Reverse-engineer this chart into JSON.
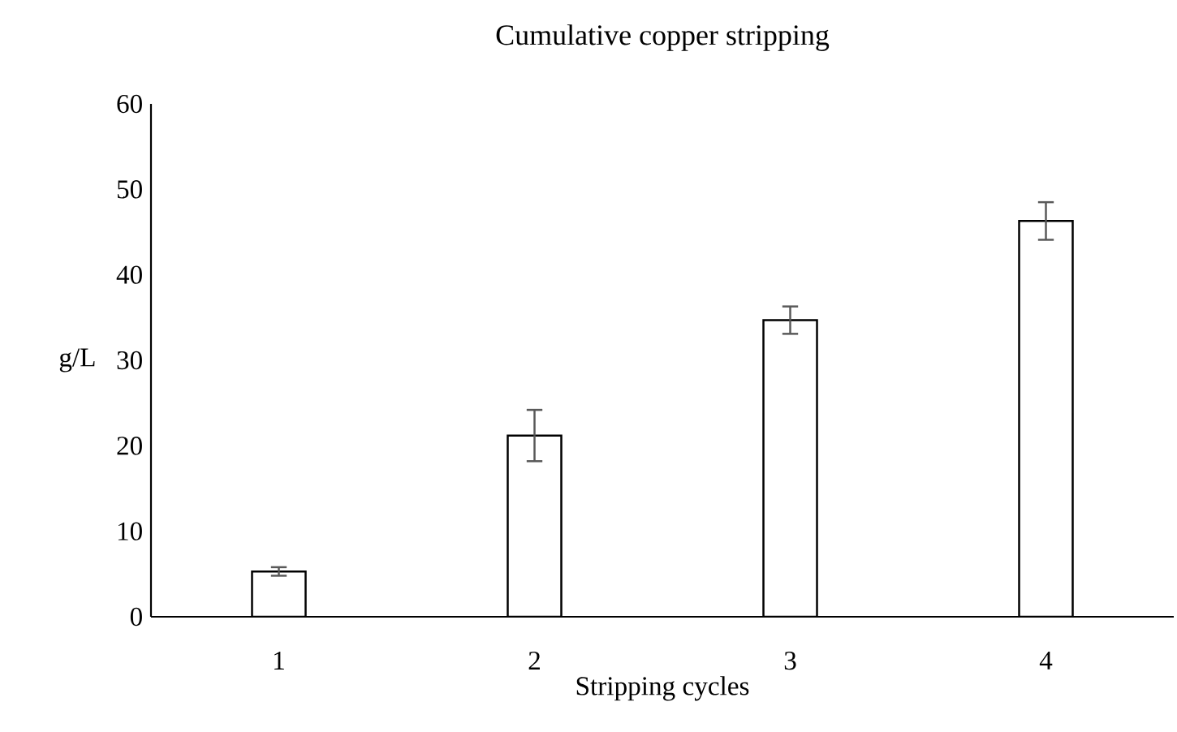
{
  "chart_data": {
    "type": "bar",
    "title": "Cumulative copper stripping",
    "xlabel": "Stripping cycles",
    "ylabel": "g/L",
    "categories": [
      "1",
      "2",
      "3",
      "4"
    ],
    "values": [
      5.3,
      21.2,
      34.7,
      46.3
    ],
    "errors": [
      0.5,
      3,
      1.6,
      2.2
    ],
    "color": "#ffffff",
    "ylim": [
      0,
      60
    ],
    "yticks": [
      0,
      10,
      20,
      30,
      40,
      50,
      60
    ],
    "grid": false
  }
}
